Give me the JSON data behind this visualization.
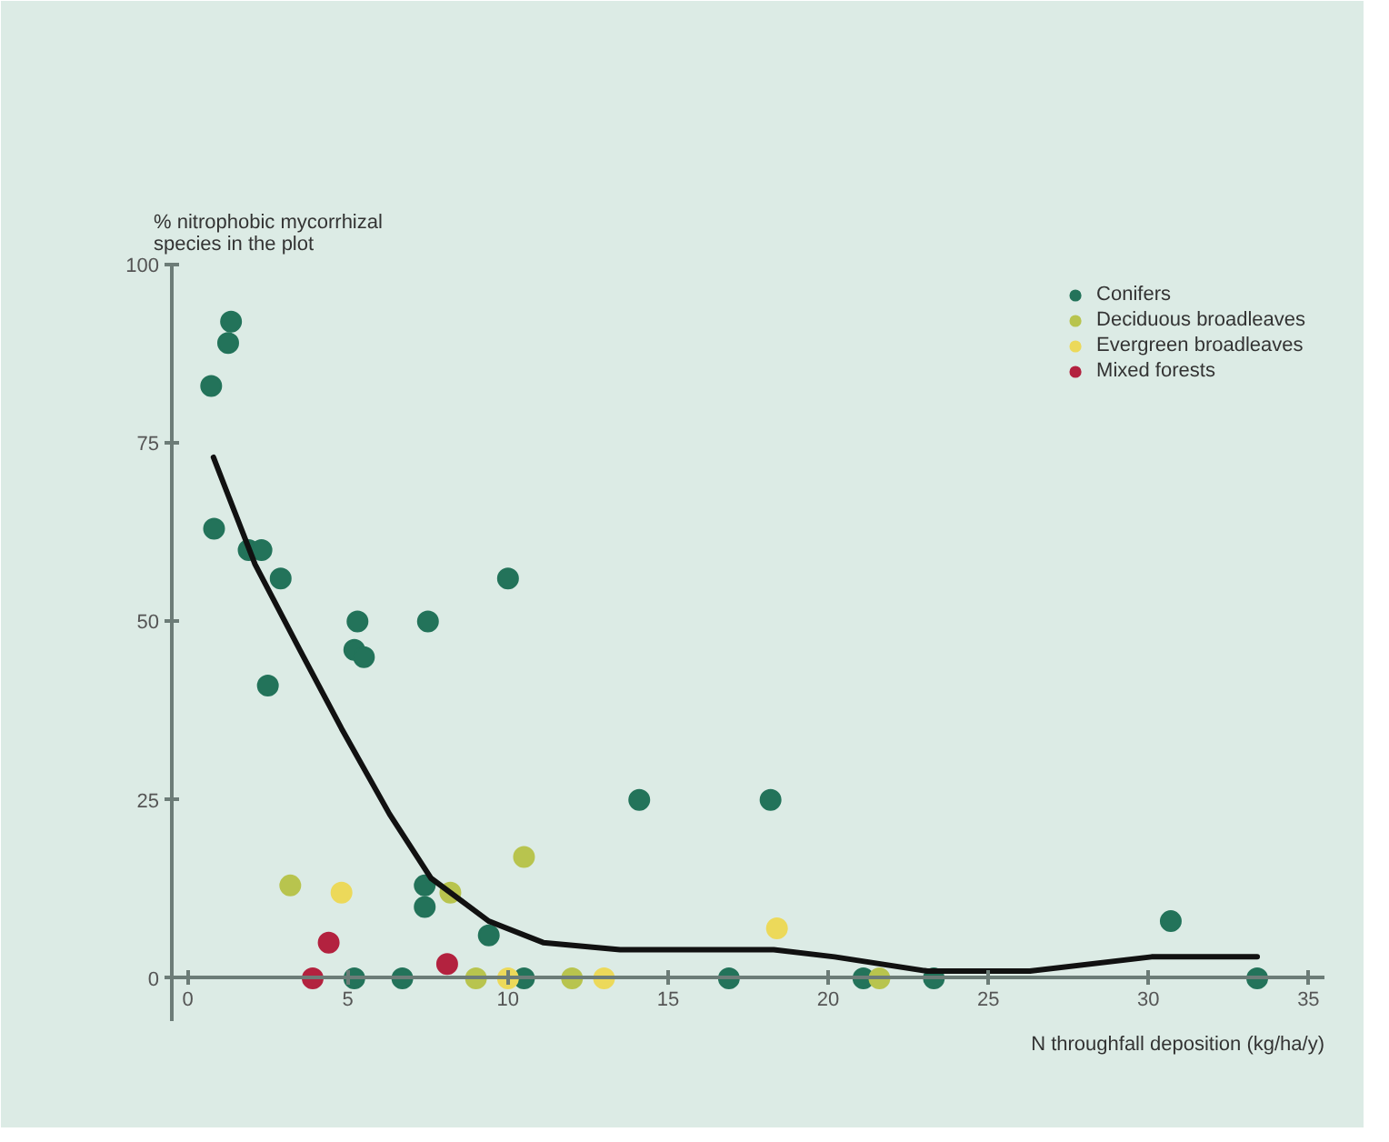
{
  "chart_data": {
    "type": "scatter",
    "xlabel": "N throughfall deposition (kg/ha/y)",
    "ylabel": "% nitrophobic mycorrhizal\nspecies in the plot",
    "xlim": [
      -0.5,
      35.5
    ],
    "ylim": [
      -6,
      100
    ],
    "xticks": [
      0,
      5,
      10,
      15,
      20,
      25,
      30,
      35
    ],
    "yticks": [
      0,
      25,
      50,
      75,
      100
    ],
    "legend": "top right",
    "marker": "circle",
    "series": [
      {
        "name": "Conifers",
        "color": "#23735a",
        "x": [
          1.35,
          1.26,
          0.73,
          0.82,
          1.9,
          2.3,
          2.9,
          5.3,
          7.5,
          5.2,
          5.5,
          2.5,
          10.0,
          7.4,
          7.4,
          9.4,
          5.2,
          6.7,
          10.5,
          14.1,
          18.2,
          30.7,
          16.9,
          21.1,
          23.3,
          33.4
        ],
        "values": [
          92,
          89,
          83,
          63,
          60,
          60,
          56,
          50,
          50,
          46,
          45,
          41,
          56,
          13,
          10,
          6,
          0,
          0,
          0,
          25,
          25,
          8,
          0,
          0,
          0,
          0
        ]
      },
      {
        "name": "Deciduous broadleaves",
        "color": "#b8c44e",
        "x": [
          3.2,
          10.5,
          8.2,
          9.0,
          12.0,
          21.6
        ],
        "values": [
          13,
          17,
          12,
          0,
          0,
          0
        ]
      },
      {
        "name": "Evergreen broadleaves",
        "color": "#ecd95a",
        "x": [
          4.8,
          18.4,
          10.0,
          13.0
        ],
        "values": [
          12,
          7,
          0,
          0
        ]
      },
      {
        "name": "Mixed forests",
        "color": "#b3223f",
        "x": [
          3.9,
          8.1,
          4.4
        ],
        "values": [
          0,
          2,
          5
        ]
      },
      {
        "type": "line",
        "marker": "none",
        "color": "#111111",
        "x": [
          0.8,
          2.1,
          3.5,
          4.8,
          6.3,
          7.6,
          9.4,
          11.1,
          13.5,
          18.3,
          20.2,
          23.1,
          26.3,
          30.1,
          33.4
        ],
        "values": [
          73,
          58,
          46,
          35,
          23,
          14,
          8,
          5,
          4,
          4,
          3,
          1,
          1,
          3,
          3
        ]
      }
    ]
  }
}
